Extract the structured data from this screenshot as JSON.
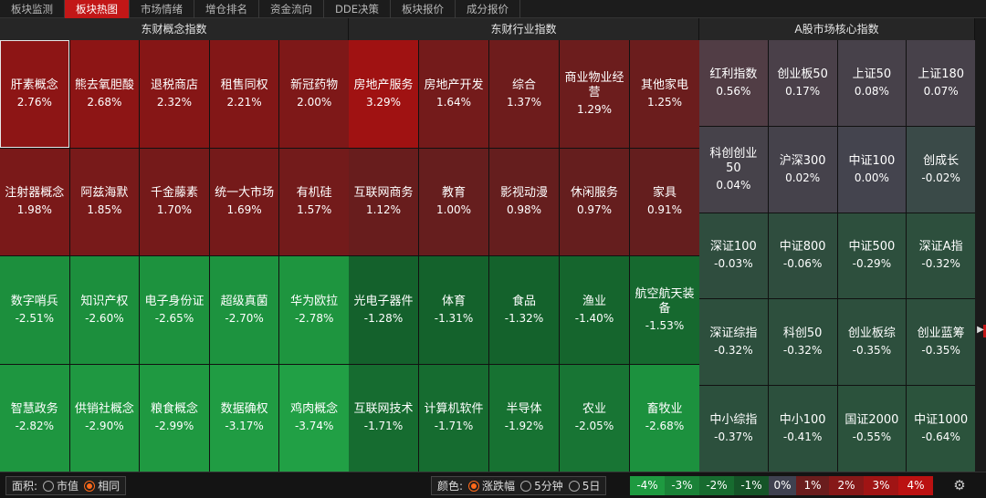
{
  "tabs": [
    {
      "label": "板块监测",
      "active": false
    },
    {
      "label": "板块热图",
      "active": true
    },
    {
      "label": "市场情绪",
      "active": false
    },
    {
      "label": "增仓排名",
      "active": false
    },
    {
      "label": "资金流向",
      "active": false
    },
    {
      "label": "DDE决策",
      "active": false
    },
    {
      "label": "板块报价",
      "active": false
    },
    {
      "label": "成分报价",
      "active": false
    }
  ],
  "panels": [
    {
      "title": "东财概念指数",
      "rows": [
        [
          {
            "name": "肝素概念",
            "pct": "2.76%",
            "color": "#8d1515",
            "selected": true
          },
          {
            "name": "熊去氧胆酸",
            "pct": "2.68%",
            "color": "#8d1515"
          },
          {
            "name": "退税商店",
            "pct": "2.32%",
            "color": "#861616"
          },
          {
            "name": "租售同权",
            "pct": "2.21%",
            "color": "#821717"
          },
          {
            "name": "新冠药物",
            "pct": "2.00%",
            "color": "#7e1818"
          }
        ],
        [
          {
            "name": "注射器概念",
            "pct": "1.98%",
            "color": "#7a1919"
          },
          {
            "name": "阿兹海默",
            "pct": "1.85%",
            "color": "#781a1a"
          },
          {
            "name": "千金藤素",
            "pct": "1.70%",
            "color": "#751a1a"
          },
          {
            "name": "统一大市场",
            "pct": "1.69%",
            "color": "#751a1a"
          },
          {
            "name": "有机硅",
            "pct": "1.57%",
            "color": "#731b1b"
          }
        ],
        [
          {
            "name": "数字哨兵",
            "pct": "-2.51%",
            "color": "#1c8f3d"
          },
          {
            "name": "知识产权",
            "pct": "-2.60%",
            "color": "#1c8f3d"
          },
          {
            "name": "电子身份证",
            "pct": "-2.65%",
            "color": "#1d923e"
          },
          {
            "name": "超级真菌",
            "pct": "-2.70%",
            "color": "#1d933f"
          },
          {
            "name": "华为欧拉",
            "pct": "-2.78%",
            "color": "#1e953f"
          }
        ],
        [
          {
            "name": "智慧政务",
            "pct": "-2.82%",
            "color": "#1e9640"
          },
          {
            "name": "供销社概念",
            "pct": "-2.90%",
            "color": "#1f9841"
          },
          {
            "name": "粮食概念",
            "pct": "-2.99%",
            "color": "#1f9941"
          },
          {
            "name": "数据确权",
            "pct": "-3.17%",
            "color": "#209c43"
          },
          {
            "name": "鸡肉概念",
            "pct": "-3.74%",
            "color": "#21a045"
          }
        ]
      ]
    },
    {
      "title": "东财行业指数",
      "rows": [
        [
          {
            "name": "房地产服务",
            "pct": "3.29%",
            "color": "#a01212"
          },
          {
            "name": "房地产开发",
            "pct": "1.64%",
            "color": "#741b1b"
          },
          {
            "name": "综合",
            "pct": "1.37%",
            "color": "#6e1c1c"
          },
          {
            "name": "商业物业经营",
            "pct": "1.29%",
            "color": "#6c1d1d"
          },
          {
            "name": "其他家电",
            "pct": "1.25%",
            "color": "#6b1d1d"
          }
        ],
        [
          {
            "name": "互联网商务",
            "pct": "1.12%",
            "color": "#681d1d"
          },
          {
            "name": "教育",
            "pct": "1.00%",
            "color": "#661e1e"
          },
          {
            "name": "影视动漫",
            "pct": "0.98%",
            "color": "#651e1e"
          },
          {
            "name": "休闲服务",
            "pct": "0.97%",
            "color": "#651e1e"
          },
          {
            "name": "家具",
            "pct": "0.91%",
            "color": "#641e1e"
          }
        ],
        [
          {
            "name": "光电子器件",
            "pct": "-1.28%",
            "color": "#14612c"
          },
          {
            "name": "体育",
            "pct": "-1.31%",
            "color": "#14622c"
          },
          {
            "name": "食品",
            "pct": "-1.32%",
            "color": "#14622c"
          },
          {
            "name": "渔业",
            "pct": "-1.40%",
            "color": "#15652d"
          },
          {
            "name": "航空航天装备",
            "pct": "-1.53%",
            "color": "#16692f"
          }
        ],
        [
          {
            "name": "互联网技术",
            "pct": "-1.71%",
            "color": "#166c30"
          },
          {
            "name": "计算机软件",
            "pct": "-1.71%",
            "color": "#166c30"
          },
          {
            "name": "半导体",
            "pct": "-1.92%",
            "color": "#177232"
          },
          {
            "name": "农业",
            "pct": "-2.05%",
            "color": "#187534"
          },
          {
            "name": "畜牧业",
            "pct": "-2.68%",
            "color": "#1c913e"
          }
        ]
      ]
    },
    {
      "title": "A股市场核心指数",
      "rows": [
        [
          {
            "name": "红利指数",
            "pct": "0.56%",
            "color": "#513d45"
          },
          {
            "name": "创业板50",
            "pct": "0.17%",
            "color": "#4a4049"
          },
          {
            "name": "上证50",
            "pct": "0.08%",
            "color": "#47414a"
          },
          {
            "name": "上证180",
            "pct": "0.07%",
            "color": "#47414a"
          }
        ],
        [
          {
            "name": "科创创业50",
            "pct": "0.04%",
            "color": "#46424a"
          },
          {
            "name": "沪深300",
            "pct": "0.02%",
            "color": "#45424b"
          },
          {
            "name": "中证100",
            "pct": "0.00%",
            "color": "#44444e"
          },
          {
            "name": "创成长",
            "pct": "-0.02%",
            "color": "#3a4a48"
          }
        ],
        [
          {
            "name": "深证100",
            "pct": "-0.03%",
            "color": "#2f4d3e"
          },
          {
            "name": "中证800",
            "pct": "-0.06%",
            "color": "#2f4d3e"
          },
          {
            "name": "中证500",
            "pct": "-0.29%",
            "color": "#2d4f3d"
          },
          {
            "name": "深证A指",
            "pct": "-0.32%",
            "color": "#2d4f3d"
          }
        ],
        [
          {
            "name": "深证综指",
            "pct": "-0.32%",
            "color": "#2d4f3d"
          },
          {
            "name": "科创50",
            "pct": "-0.32%",
            "color": "#2d4f3d"
          },
          {
            "name": "创业板综",
            "pct": "-0.35%",
            "color": "#2d4f3d"
          },
          {
            "name": "创业蓝筹",
            "pct": "-0.35%",
            "color": "#2d4f3d"
          }
        ],
        [
          {
            "name": "中小综指",
            "pct": "-0.37%",
            "color": "#2c503d"
          },
          {
            "name": "中小100",
            "pct": "-0.41%",
            "color": "#2c503d"
          },
          {
            "name": "国证2000",
            "pct": "-0.55%",
            "color": "#2b523c"
          },
          {
            "name": "中证1000",
            "pct": "-0.64%",
            "color": "#2b533c"
          }
        ]
      ]
    }
  ],
  "bottom": {
    "area_label": "面积:",
    "area_options": [
      {
        "label": "市值",
        "selected": false
      },
      {
        "label": "相同",
        "selected": true
      }
    ],
    "color_label": "颜色:",
    "color_options": [
      {
        "label": "涨跌幅",
        "selected": true
      },
      {
        "label": "5分钟",
        "selected": false
      },
      {
        "label": "5日",
        "selected": false
      }
    ],
    "legend": [
      {
        "label": "-4%",
        "color": "#1e9a40"
      },
      {
        "label": "-3%",
        "color": "#1a8237"
      },
      {
        "label": "-2%",
        "color": "#176b2f"
      },
      {
        "label": "-1%",
        "color": "#155428"
      },
      {
        "label": "0%",
        "color": "#3f4150"
      },
      {
        "label": "1%",
        "color": "#6a1d1d"
      },
      {
        "label": "2%",
        "color": "#861818"
      },
      {
        "label": "3%",
        "color": "#a01414"
      },
      {
        "label": "4%",
        "color": "#bb1111"
      }
    ],
    "settings_icon": "gear-icon"
  }
}
